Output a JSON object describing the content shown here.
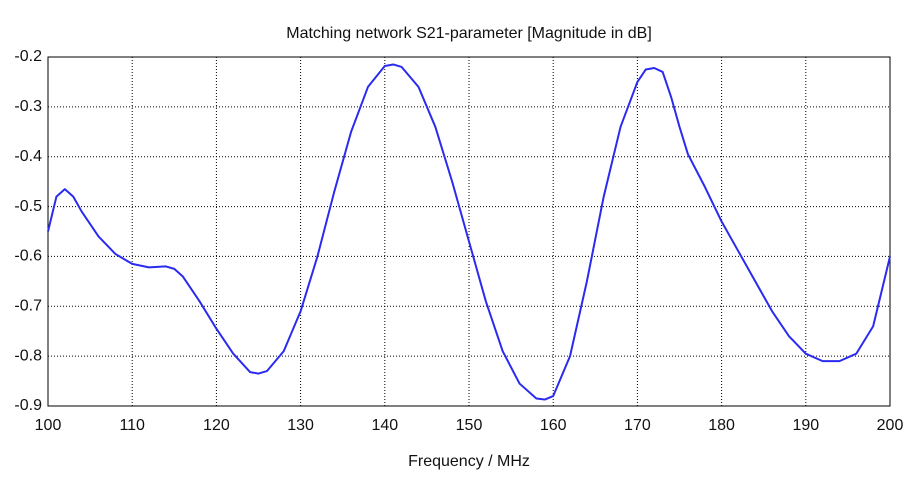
{
  "chart_data": {
    "type": "line",
    "title": "Matching network S21-parameter [Magnitude in dB]",
    "x_label": "Frequency / MHz",
    "x": [
      100,
      101,
      102,
      103,
      104,
      106,
      108,
      110,
      112,
      114,
      115,
      116,
      118,
      120,
      122,
      124,
      125,
      126,
      128,
      130,
      132,
      134,
      136,
      138,
      140,
      141,
      142,
      144,
      146,
      148,
      150,
      152,
      154,
      156,
      158,
      159,
      160,
      162,
      164,
      166,
      168,
      170,
      171,
      172,
      173,
      174,
      175,
      176,
      178,
      180,
      182,
      184,
      186,
      188,
      190,
      192,
      194,
      196,
      198,
      200
    ],
    "series": [
      {
        "color": "#2b2bf0",
        "values": [
          -0.55,
          -0.48,
          -0.465,
          -0.48,
          -0.51,
          -0.56,
          -0.595,
          -0.615,
          -0.622,
          -0.62,
          -0.625,
          -0.64,
          -0.69,
          -0.745,
          -0.795,
          -0.832,
          -0.835,
          -0.83,
          -0.79,
          -0.71,
          -0.6,
          -0.47,
          -0.35,
          -0.26,
          -0.218,
          -0.215,
          -0.22,
          -0.26,
          -0.34,
          -0.45,
          -0.57,
          -0.69,
          -0.79,
          -0.855,
          -0.885,
          -0.887,
          -0.88,
          -0.8,
          -0.65,
          -0.48,
          -0.34,
          -0.25,
          -0.225,
          -0.222,
          -0.23,
          -0.28,
          -0.34,
          -0.395,
          -0.46,
          -0.53,
          -0.59,
          -0.65,
          -0.71,
          -0.76,
          -0.795,
          -0.81,
          -0.81,
          -0.795,
          -0.74,
          -0.6
        ]
      }
    ],
    "xlim": [
      100,
      200
    ],
    "xticks": [
      100,
      110,
      120,
      130,
      140,
      150,
      160,
      170,
      180,
      190,
      200
    ],
    "ylim": [
      -0.9,
      -0.2
    ],
    "yticks": [
      -0.2,
      -0.3,
      -0.4,
      -0.5,
      -0.6,
      -0.7,
      -0.8,
      -0.9
    ],
    "grid": true
  }
}
